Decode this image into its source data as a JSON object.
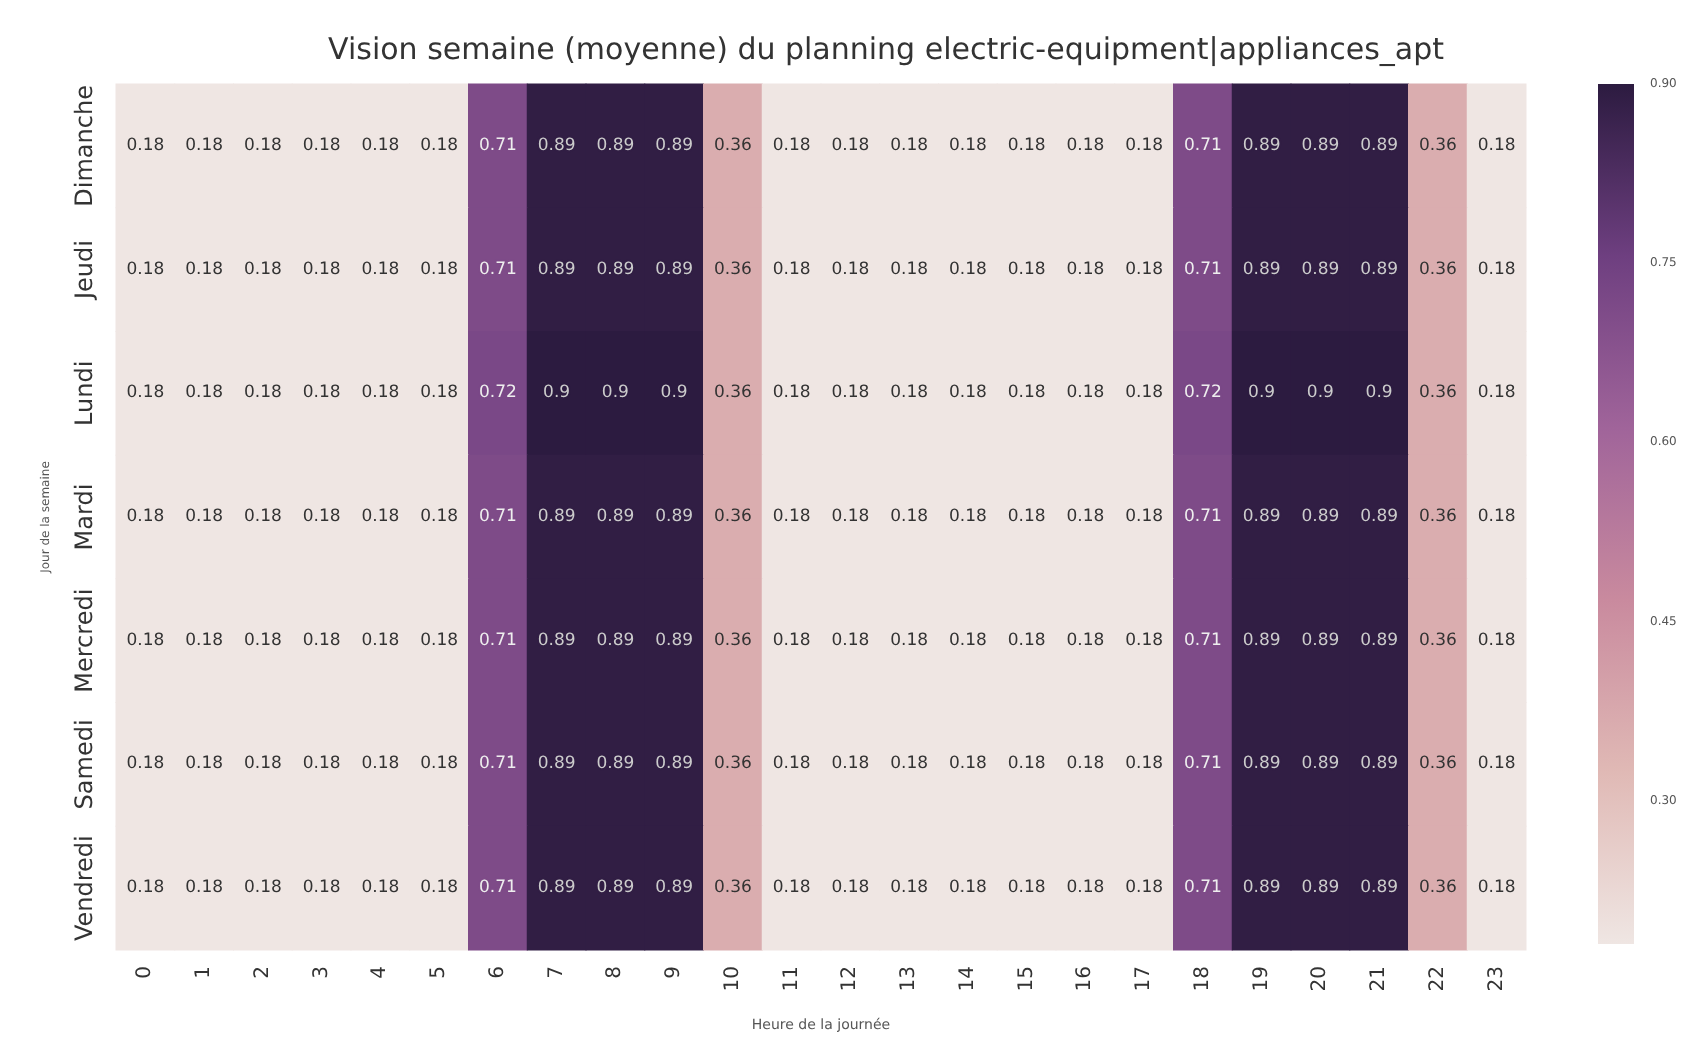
{
  "chart_data": {
    "type": "heatmap",
    "title": "Vision semaine (moyenne) du planning electric-equipment|appliances_apt",
    "xlabel": "Heure de la journée",
    "ylabel": "Jour de la semaine",
    "categories": [
      "0",
      "1",
      "2",
      "3",
      "4",
      "5",
      "6",
      "7",
      "8",
      "9",
      "10",
      "11",
      "12",
      "13",
      "14",
      "15",
      "16",
      "17",
      "18",
      "19",
      "20",
      "21",
      "22",
      "23"
    ],
    "y_categories": [
      "Dimanche",
      "Jeudi",
      "Lundi",
      "Mardi",
      "Mercredi",
      "Samedi",
      "Vendredi"
    ],
    "cells": [
      [
        0.18,
        0.18,
        0.18,
        0.18,
        0.18,
        0.18,
        0.71,
        0.89,
        0.89,
        0.89,
        0.36,
        0.18,
        0.18,
        0.18,
        0.18,
        0.18,
        0.18,
        0.18,
        0.71,
        0.89,
        0.89,
        0.89,
        0.36,
        0.18
      ],
      [
        0.18,
        0.18,
        0.18,
        0.18,
        0.18,
        0.18,
        0.71,
        0.89,
        0.89,
        0.89,
        0.36,
        0.18,
        0.18,
        0.18,
        0.18,
        0.18,
        0.18,
        0.18,
        0.71,
        0.89,
        0.89,
        0.89,
        0.36,
        0.18
      ],
      [
        0.18,
        0.18,
        0.18,
        0.18,
        0.18,
        0.18,
        0.72,
        0.9,
        0.9,
        0.9,
        0.36,
        0.18,
        0.18,
        0.18,
        0.18,
        0.18,
        0.18,
        0.18,
        0.72,
        0.9,
        0.9,
        0.9,
        0.36,
        0.18
      ],
      [
        0.18,
        0.18,
        0.18,
        0.18,
        0.18,
        0.18,
        0.71,
        0.89,
        0.89,
        0.89,
        0.36,
        0.18,
        0.18,
        0.18,
        0.18,
        0.18,
        0.18,
        0.18,
        0.71,
        0.89,
        0.89,
        0.89,
        0.36,
        0.18
      ],
      [
        0.18,
        0.18,
        0.18,
        0.18,
        0.18,
        0.18,
        0.71,
        0.89,
        0.89,
        0.89,
        0.36,
        0.18,
        0.18,
        0.18,
        0.18,
        0.18,
        0.18,
        0.18,
        0.71,
        0.89,
        0.89,
        0.89,
        0.36,
        0.18
      ],
      [
        0.18,
        0.18,
        0.18,
        0.18,
        0.18,
        0.18,
        0.71,
        0.89,
        0.89,
        0.89,
        0.36,
        0.18,
        0.18,
        0.18,
        0.18,
        0.18,
        0.18,
        0.18,
        0.71,
        0.89,
        0.89,
        0.89,
        0.36,
        0.18
      ],
      [
        0.18,
        0.18,
        0.18,
        0.18,
        0.18,
        0.18,
        0.71,
        0.89,
        0.89,
        0.89,
        0.36,
        0.18,
        0.18,
        0.18,
        0.18,
        0.18,
        0.18,
        0.18,
        0.71,
        0.89,
        0.89,
        0.89,
        0.36,
        0.18
      ]
    ],
    "clim": [
      0.18,
      0.9
    ],
    "cticks": [
      {
        "value": 0.3,
        "label": "0.30"
      },
      {
        "value": 0.45,
        "label": "0.45"
      },
      {
        "value": 0.6,
        "label": "0.60"
      },
      {
        "value": 0.75,
        "label": "0.75"
      },
      {
        "value": 0.9,
        "label": "0.90"
      }
    ],
    "data_labels": true
  }
}
